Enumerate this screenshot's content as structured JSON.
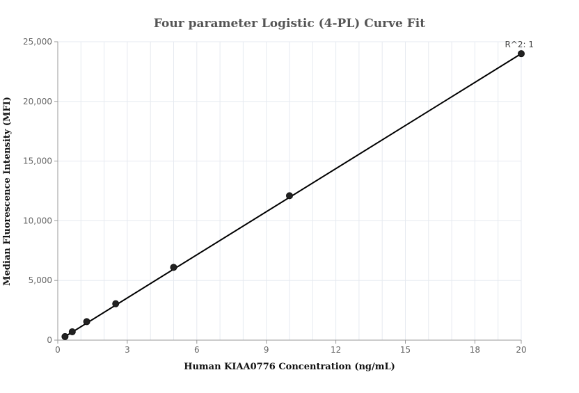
{
  "chart_data": {
    "type": "scatter",
    "title": "Four parameter Logistic (4-PL) Curve Fit",
    "xlabel": "Human KIAA0776 Concentration (ng/mL)",
    "ylabel": "Median Fluorescence Intensity (MFI)",
    "xlim": [
      0,
      20
    ],
    "ylim": [
      0,
      25000
    ],
    "x_ticks": [
      0,
      3,
      6,
      9,
      12,
      15,
      18,
      20
    ],
    "x_tick_labels": [
      "0",
      "3",
      "6",
      "9",
      "12",
      "15",
      "18",
      "20"
    ],
    "y_ticks": [
      0,
      5000,
      10000,
      15000,
      20000,
      25000
    ],
    "y_tick_labels": [
      "0",
      "5,000",
      "10,000",
      "15,000",
      "20,000",
      "25,000"
    ],
    "grid": true,
    "series": [
      {
        "points": [
          {
            "x": 0.3125,
            "y": 300
          },
          {
            "x": 0.625,
            "y": 700
          },
          {
            "x": 1.25,
            "y": 1550
          },
          {
            "x": 2.5,
            "y": 3050
          },
          {
            "x": 5,
            "y": 6100
          },
          {
            "x": 10,
            "y": 12100
          },
          {
            "x": 20,
            "y": 24000
          }
        ]
      }
    ],
    "fit_curve": {
      "x": [
        0.3125,
        20
      ],
      "y": [
        300,
        24000
      ]
    },
    "annotation": "R^2: 1",
    "colors": {
      "marker": "#222222",
      "line": "#000000",
      "grid": "#e6eaf0",
      "axis": "#999999"
    }
  }
}
